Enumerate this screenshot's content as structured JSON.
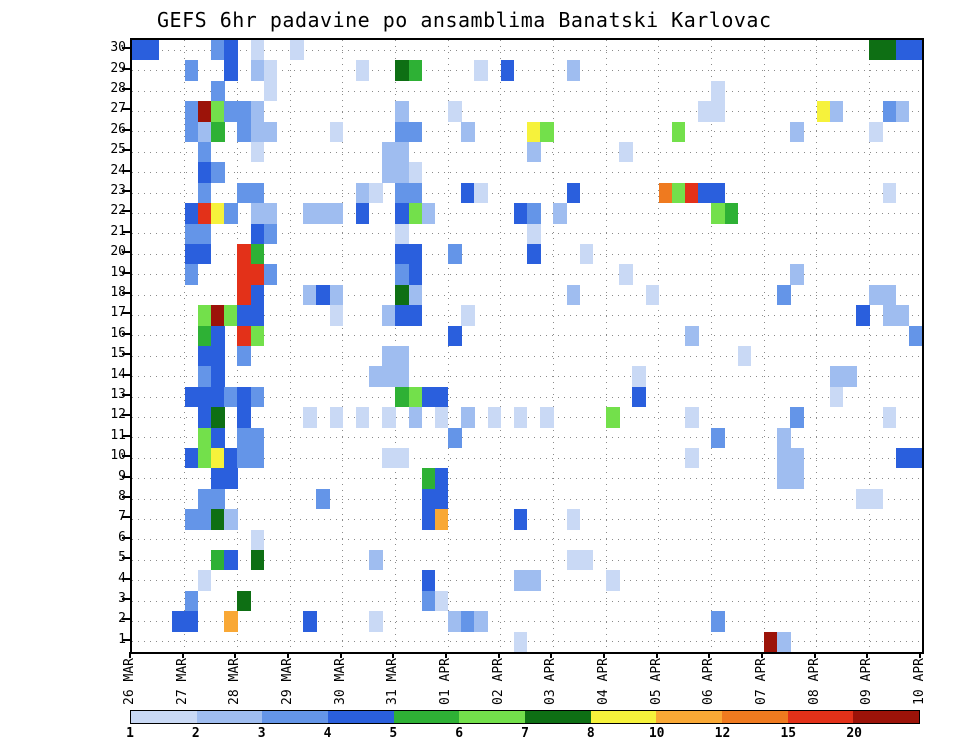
{
  "chart_data": {
    "type": "heatmap",
    "title": "GEFS 6hr padavine po ansamblima Banatski Karlovac",
    "x_axis": {
      "labels": [
        "26 MAR",
        "27 MAR",
        "28 MAR",
        "29 MAR",
        "30 MAR",
        "31 MAR",
        "01 APR",
        "02 APR",
        "03 APR",
        "04 APR",
        "05 APR",
        "06 APR",
        "07 APR",
        "08 APR",
        "09 APR",
        "10 APR"
      ],
      "steps_per_day": 4,
      "total_steps": 60
    },
    "y_axis": {
      "min": 1,
      "max": 30
    },
    "grid": "dotted",
    "legend": {
      "levels": [
        1,
        2,
        3,
        4,
        5,
        6,
        7,
        8,
        10,
        12,
        15,
        20
      ],
      "colors": [
        "#c9d9f5",
        "#9fbdf0",
        "#6495e8",
        "#2a5fdd",
        "#2eb135",
        "#73e04b",
        "#0e6f14",
        "#f6f23b",
        "#f9a835",
        "#ef7a1f",
        "#e33119",
        "#9c1309"
      ]
    },
    "cells": [
      [
        30,
        0,
        4
      ],
      [
        30,
        1,
        4
      ],
      [
        30,
        6,
        3
      ],
      [
        30,
        7,
        4
      ],
      [
        30,
        9,
        1
      ],
      [
        30,
        12,
        1
      ],
      [
        30,
        56,
        7
      ],
      [
        30,
        57,
        7
      ],
      [
        30,
        58,
        4
      ],
      [
        30,
        59,
        4
      ],
      [
        29,
        4,
        3
      ],
      [
        29,
        7,
        4
      ],
      [
        29,
        9,
        2
      ],
      [
        29,
        10,
        1
      ],
      [
        29,
        17,
        1
      ],
      [
        29,
        20,
        7
      ],
      [
        29,
        21,
        5
      ],
      [
        29,
        26,
        1
      ],
      [
        29,
        28,
        4
      ],
      [
        29,
        33,
        2
      ],
      [
        28,
        6,
        3
      ],
      [
        28,
        10,
        1
      ],
      [
        28,
        44,
        1
      ],
      [
        27,
        4,
        3
      ],
      [
        27,
        5,
        20
      ],
      [
        27,
        6,
        6
      ],
      [
        27,
        7,
        3
      ],
      [
        27,
        8,
        3
      ],
      [
        27,
        9,
        2
      ],
      [
        27,
        20,
        2
      ],
      [
        27,
        24,
        1
      ],
      [
        27,
        43,
        1
      ],
      [
        27,
        44,
        1
      ],
      [
        27,
        52,
        8
      ],
      [
        27,
        53,
        2
      ],
      [
        27,
        57,
        3
      ],
      [
        27,
        58,
        2
      ],
      [
        26,
        4,
        3
      ],
      [
        26,
        5,
        2
      ],
      [
        26,
        6,
        5
      ],
      [
        26,
        8,
        3
      ],
      [
        26,
        9,
        2
      ],
      [
        26,
        10,
        2
      ],
      [
        26,
        15,
        1
      ],
      [
        26,
        20,
        3
      ],
      [
        26,
        21,
        3
      ],
      [
        26,
        25,
        2
      ],
      [
        26,
        30,
        8
      ],
      [
        26,
        31,
        6
      ],
      [
        26,
        41,
        6
      ],
      [
        26,
        50,
        2
      ],
      [
        26,
        56,
        1
      ],
      [
        25,
        5,
        3
      ],
      [
        25,
        9,
        1
      ],
      [
        25,
        19,
        2
      ],
      [
        25,
        20,
        2
      ],
      [
        25,
        30,
        2
      ],
      [
        25,
        37,
        1
      ],
      [
        24,
        5,
        4
      ],
      [
        24,
        6,
        3
      ],
      [
        24,
        19,
        2
      ],
      [
        24,
        20,
        2
      ],
      [
        24,
        21,
        1
      ],
      [
        23,
        5,
        3
      ],
      [
        23,
        8,
        3
      ],
      [
        23,
        9,
        3
      ],
      [
        23,
        17,
        2
      ],
      [
        23,
        18,
        1
      ],
      [
        23,
        20,
        3
      ],
      [
        23,
        21,
        3
      ],
      [
        23,
        25,
        4
      ],
      [
        23,
        26,
        1
      ],
      [
        23,
        33,
        4
      ],
      [
        23,
        40,
        12
      ],
      [
        23,
        41,
        6
      ],
      [
        23,
        42,
        15
      ],
      [
        23,
        43,
        4
      ],
      [
        23,
        44,
        4
      ],
      [
        23,
        57,
        1
      ],
      [
        22,
        4,
        4
      ],
      [
        22,
        5,
        15
      ],
      [
        22,
        6,
        8
      ],
      [
        22,
        7,
        3
      ],
      [
        22,
        9,
        2
      ],
      [
        22,
        10,
        2
      ],
      [
        22,
        13,
        2
      ],
      [
        22,
        14,
        2
      ],
      [
        22,
        15,
        2
      ],
      [
        22,
        17,
        4
      ],
      [
        22,
        20,
        4
      ],
      [
        22,
        21,
        6
      ],
      [
        22,
        22,
        2
      ],
      [
        22,
        29,
        4
      ],
      [
        22,
        30,
        3
      ],
      [
        22,
        32,
        2
      ],
      [
        22,
        44,
        6
      ],
      [
        22,
        45,
        5
      ],
      [
        21,
        4,
        3
      ],
      [
        21,
        5,
        3
      ],
      [
        21,
        9,
        4
      ],
      [
        21,
        10,
        3
      ],
      [
        21,
        20,
        1
      ],
      [
        21,
        30,
        1
      ],
      [
        20,
        4,
        4
      ],
      [
        20,
        5,
        4
      ],
      [
        20,
        8,
        15
      ],
      [
        20,
        9,
        5
      ],
      [
        20,
        20,
        4
      ],
      [
        20,
        21,
        4
      ],
      [
        20,
        24,
        3
      ],
      [
        20,
        30,
        4
      ],
      [
        20,
        34,
        1
      ],
      [
        19,
        4,
        3
      ],
      [
        19,
        8,
        15
      ],
      [
        19,
        9,
        15
      ],
      [
        19,
        10,
        3
      ],
      [
        19,
        20,
        3
      ],
      [
        19,
        21,
        4
      ],
      [
        19,
        37,
        1
      ],
      [
        19,
        50,
        2
      ],
      [
        18,
        8,
        15
      ],
      [
        18,
        9,
        4
      ],
      [
        18,
        13,
        2
      ],
      [
        18,
        14,
        4
      ],
      [
        18,
        15,
        2
      ],
      [
        18,
        20,
        7
      ],
      [
        18,
        21,
        2
      ],
      [
        18,
        33,
        2
      ],
      [
        18,
        39,
        1
      ],
      [
        18,
        49,
        3
      ],
      [
        18,
        56,
        2
      ],
      [
        18,
        57,
        2
      ],
      [
        17,
        5,
        6
      ],
      [
        17,
        6,
        20
      ],
      [
        17,
        7,
        6
      ],
      [
        17,
        8,
        4
      ],
      [
        17,
        9,
        4
      ],
      [
        17,
        15,
        1
      ],
      [
        17,
        19,
        2
      ],
      [
        17,
        20,
        4
      ],
      [
        17,
        21,
        4
      ],
      [
        17,
        25,
        1
      ],
      [
        17,
        55,
        4
      ],
      [
        17,
        57,
        2
      ],
      [
        17,
        58,
        2
      ],
      [
        16,
        5,
        5
      ],
      [
        16,
        6,
        4
      ],
      [
        16,
        8,
        15
      ],
      [
        16,
        9,
        6
      ],
      [
        16,
        24,
        4
      ],
      [
        16,
        42,
        2
      ],
      [
        16,
        59,
        3
      ],
      [
        15,
        5,
        4
      ],
      [
        15,
        6,
        4
      ],
      [
        15,
        8,
        3
      ],
      [
        15,
        19,
        2
      ],
      [
        15,
        20,
        2
      ],
      [
        15,
        46,
        1
      ],
      [
        14,
        5,
        3
      ],
      [
        14,
        6,
        4
      ],
      [
        14,
        18,
        2
      ],
      [
        14,
        19,
        2
      ],
      [
        14,
        20,
        2
      ],
      [
        14,
        38,
        1
      ],
      [
        14,
        53,
        2
      ],
      [
        14,
        54,
        2
      ],
      [
        13,
        4,
        4
      ],
      [
        13,
        5,
        4
      ],
      [
        13,
        6,
        4
      ],
      [
        13,
        7,
        3
      ],
      [
        13,
        8,
        4
      ],
      [
        13,
        9,
        3
      ],
      [
        13,
        20,
        5
      ],
      [
        13,
        21,
        6
      ],
      [
        13,
        22,
        4
      ],
      [
        13,
        23,
        4
      ],
      [
        13,
        38,
        4
      ],
      [
        13,
        53,
        1
      ],
      [
        12,
        5,
        4
      ],
      [
        12,
        6,
        7
      ],
      [
        12,
        8,
        4
      ],
      [
        12,
        13,
        1
      ],
      [
        12,
        15,
        1
      ],
      [
        12,
        17,
        1
      ],
      [
        12,
        19,
        1
      ],
      [
        12,
        21,
        2
      ],
      [
        12,
        23,
        1
      ],
      [
        12,
        25,
        2
      ],
      [
        12,
        27,
        1
      ],
      [
        12,
        29,
        1
      ],
      [
        12,
        31,
        1
      ],
      [
        12,
        36,
        6
      ],
      [
        12,
        42,
        1
      ],
      [
        12,
        50,
        3
      ],
      [
        12,
        57,
        1
      ],
      [
        11,
        5,
        6
      ],
      [
        11,
        6,
        4
      ],
      [
        11,
        8,
        3
      ],
      [
        11,
        9,
        3
      ],
      [
        11,
        24,
        3
      ],
      [
        11,
        44,
        3
      ],
      [
        11,
        49,
        2
      ],
      [
        10,
        4,
        4
      ],
      [
        10,
        5,
        6
      ],
      [
        10,
        6,
        8
      ],
      [
        10,
        7,
        4
      ],
      [
        10,
        8,
        3
      ],
      [
        10,
        9,
        3
      ],
      [
        10,
        19,
        1
      ],
      [
        10,
        20,
        1
      ],
      [
        10,
        42,
        1
      ],
      [
        10,
        49,
        2
      ],
      [
        10,
        50,
        2
      ],
      [
        10,
        58,
        4
      ],
      [
        10,
        59,
        4
      ],
      [
        9,
        6,
        4
      ],
      [
        9,
        7,
        4
      ],
      [
        9,
        22,
        5
      ],
      [
        9,
        23,
        4
      ],
      [
        9,
        49,
        2
      ],
      [
        9,
        50,
        2
      ],
      [
        8,
        5,
        3
      ],
      [
        8,
        6,
        3
      ],
      [
        8,
        14,
        3
      ],
      [
        8,
        22,
        4
      ],
      [
        8,
        23,
        4
      ],
      [
        8,
        55,
        1
      ],
      [
        8,
        56,
        1
      ],
      [
        7,
        4,
        3
      ],
      [
        7,
        5,
        3
      ],
      [
        7,
        6,
        7
      ],
      [
        7,
        7,
        2
      ],
      [
        7,
        22,
        4
      ],
      [
        7,
        23,
        10
      ],
      [
        7,
        29,
        4
      ],
      [
        7,
        33,
        1
      ],
      [
        6,
        9,
        1
      ],
      [
        5,
        6,
        5
      ],
      [
        5,
        7,
        4
      ],
      [
        5,
        9,
        7
      ],
      [
        5,
        18,
        2
      ],
      [
        5,
        33,
        1
      ],
      [
        5,
        34,
        1
      ],
      [
        4,
        5,
        1
      ],
      [
        4,
        22,
        4
      ],
      [
        4,
        29,
        2
      ],
      [
        4,
        30,
        2
      ],
      [
        4,
        36,
        1
      ],
      [
        3,
        4,
        3
      ],
      [
        3,
        8,
        7
      ],
      [
        3,
        22,
        3
      ],
      [
        3,
        23,
        1
      ],
      [
        2,
        3,
        4
      ],
      [
        2,
        4,
        4
      ],
      [
        2,
        7,
        10
      ],
      [
        2,
        13,
        4
      ],
      [
        2,
        18,
        1
      ],
      [
        2,
        24,
        2
      ],
      [
        2,
        25,
        3
      ],
      [
        2,
        26,
        2
      ],
      [
        2,
        44,
        3
      ],
      [
        1,
        29,
        1
      ],
      [
        1,
        48,
        20
      ],
      [
        1,
        49,
        2
      ]
    ]
  }
}
